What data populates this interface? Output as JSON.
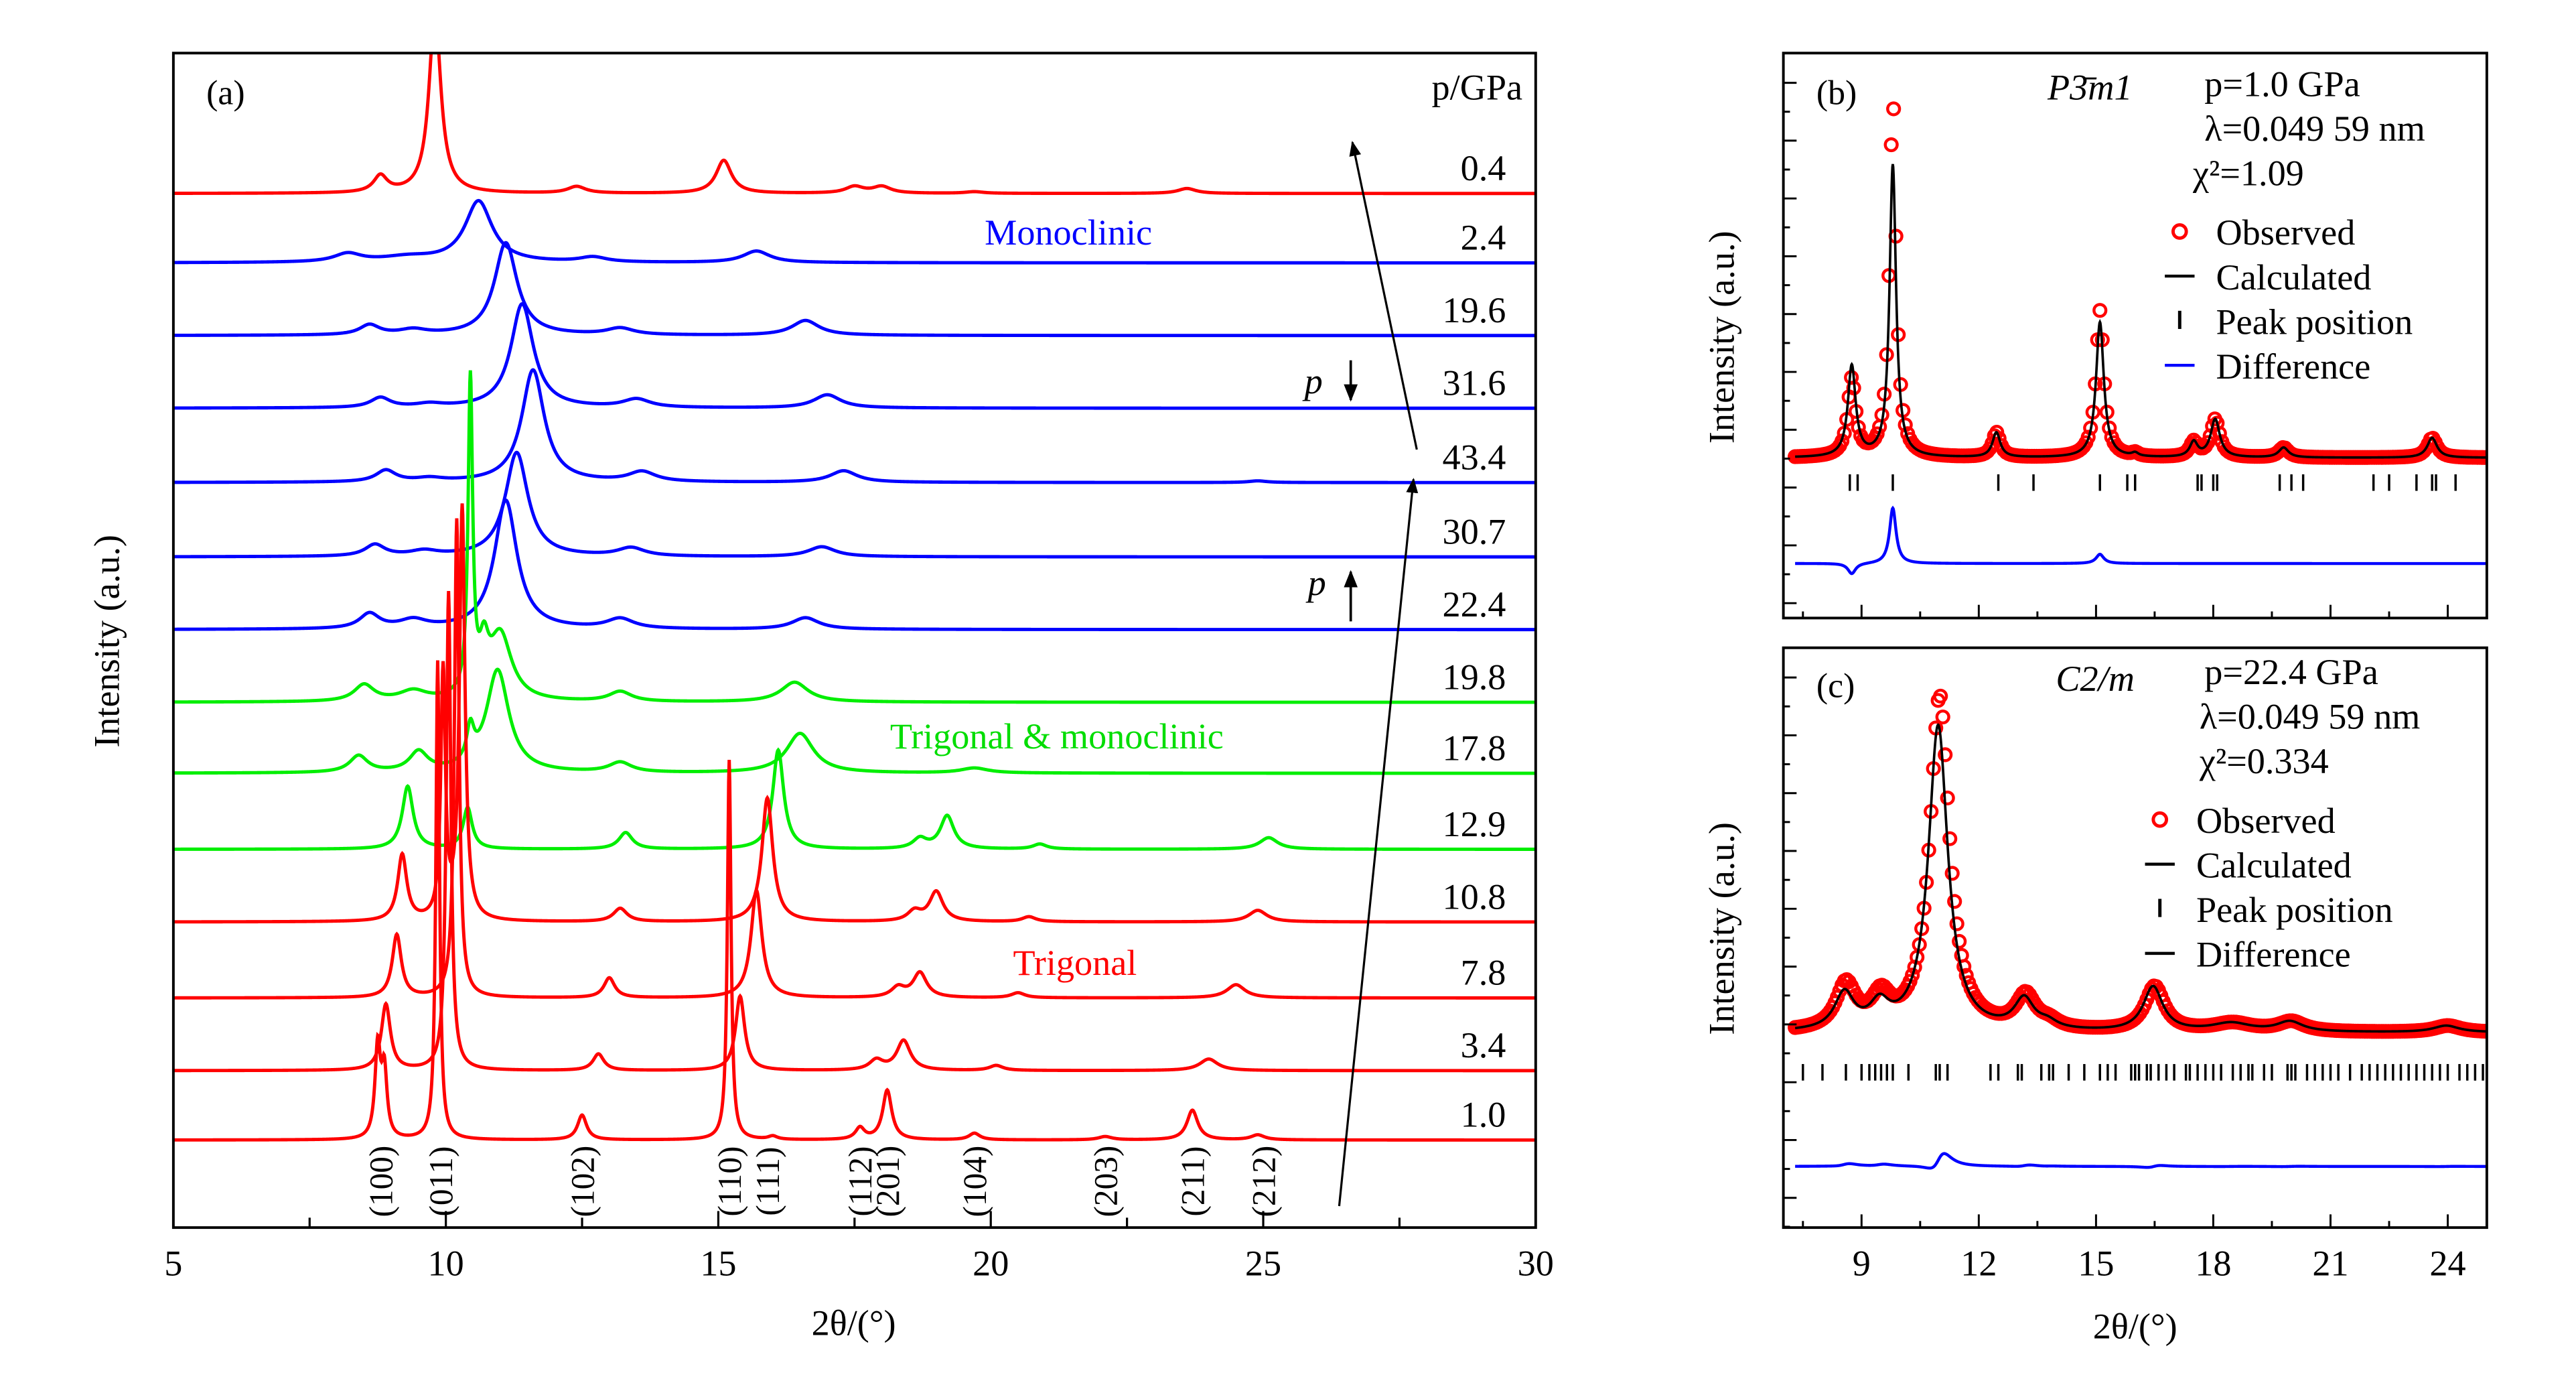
{
  "colors": {
    "trigonal": "#ff0000",
    "monoclinic": "#0000ff",
    "mixed": "#00ee00",
    "axis": "#000000",
    "observed": "#ff0000",
    "calculated": "#000000",
    "difference": "#0000ff"
  },
  "chart_data": [
    {
      "id": "a",
      "type": "line",
      "panel_label": "(a)",
      "xlabel": "2θ/(°)",
      "ylabel": "Intensity (a.u.)",
      "xlim": [
        5,
        30
      ],
      "xticks": [
        5,
        10,
        15,
        20,
        25,
        30
      ],
      "pressure_header": "p/GPa",
      "phase_labels": {
        "monoclinic": "Monoclinic",
        "mixed": "Trigonal & monoclinic",
        "trigonal": "Trigonal"
      },
      "pressure_arrows": [
        {
          "label": "p",
          "direction": "down"
        },
        {
          "label": "p",
          "direction": "up"
        }
      ],
      "series": [
        {
          "pressure": "0.4",
          "phase": "trigonal",
          "peaks": [
            [
              8.8,
              10,
              0.15
            ],
            [
              9.8,
              110,
              0.13
            ],
            [
              12.4,
              4,
              0.2
            ],
            [
              15.1,
              20,
              0.17
            ],
            [
              17.5,
              4,
              0.2
            ],
            [
              18.0,
              4,
              0.2
            ],
            [
              19.7,
              1,
              0.2
            ],
            [
              23.6,
              3,
              0.2
            ]
          ]
        },
        {
          "pressure": "2.4",
          "phase": "monoclinic",
          "peaks": [
            [
              8.2,
              5,
              0.3
            ],
            [
              9.3,
              3,
              0.6
            ],
            [
              10.6,
              37,
              0.3
            ],
            [
              12.7,
              3,
              0.3
            ],
            [
              15.7,
              7,
              0.3
            ]
          ]
        },
        {
          "pressure": "19.6",
          "phase": "monoclinic",
          "peaks": [
            [
              8.6,
              6,
              0.22
            ],
            [
              9.4,
              3,
              0.3
            ],
            [
              11.1,
              56,
              0.25
            ],
            [
              13.2,
              4,
              0.3
            ],
            [
              16.6,
              9,
              0.3
            ]
          ]
        },
        {
          "pressure": "31.6",
          "phase": "monoclinic",
          "peaks": [
            [
              8.8,
              6,
              0.22
            ],
            [
              9.7,
              2,
              0.3
            ],
            [
              11.4,
              63,
              0.25
            ],
            [
              13.5,
              5,
              0.3
            ],
            [
              17.0,
              8,
              0.3
            ]
          ]
        },
        {
          "pressure": "43.4",
          "phase": "monoclinic",
          "peaks": [
            [
              8.9,
              7,
              0.22
            ],
            [
              9.7,
              2,
              0.3
            ],
            [
              11.6,
              68,
              0.25
            ],
            [
              13.6,
              6,
              0.3
            ],
            [
              17.3,
              7,
              0.3
            ],
            [
              24.9,
              1,
              0.2
            ]
          ]
        },
        {
          "pressure": "30.7",
          "phase": "monoclinic",
          "peaks": [
            [
              8.7,
              7,
              0.22
            ],
            [
              9.6,
              3,
              0.3
            ],
            [
              11.3,
              63,
              0.25
            ],
            [
              13.4,
              5,
              0.3
            ],
            [
              16.9,
              6,
              0.3
            ]
          ]
        },
        {
          "pressure": "22.4",
          "phase": "monoclinic",
          "peaks": [
            [
              8.6,
              9,
              0.22
            ],
            [
              9.4,
              5,
              0.3
            ],
            [
              11.1,
              78,
              0.25
            ],
            [
              13.2,
              6,
              0.3
            ],
            [
              16.6,
              7,
              0.3
            ]
          ]
        },
        {
          "pressure": "19.8",
          "phase": "mixed",
          "peaks": [
            [
              8.5,
              10,
              0.22
            ],
            [
              9.4,
              6,
              0.3
            ],
            [
              10.45,
              190,
              0.05
            ],
            [
              10.7,
              25,
              0.1
            ],
            [
              11.0,
              40,
              0.25
            ],
            [
              13.2,
              6,
              0.25
            ],
            [
              16.4,
              12,
              0.3
            ]
          ]
        },
        {
          "pressure": "17.8",
          "phase": "mixed",
          "peaks": [
            [
              8.4,
              10,
              0.2
            ],
            [
              9.5,
              12,
              0.2
            ],
            [
              10.45,
              20,
              0.08
            ],
            [
              10.95,
              62,
              0.25
            ],
            [
              13.2,
              6,
              0.25
            ],
            [
              16.5,
              24,
              0.3
            ],
            [
              19.7,
              3,
              0.3
            ]
          ]
        },
        {
          "pressure": "12.9",
          "phase": "mixed",
          "peaks": [
            [
              9.3,
              38,
              0.12
            ],
            [
              10.4,
              25,
              0.1
            ],
            [
              13.3,
              10,
              0.15
            ],
            [
              16.1,
              60,
              0.12
            ],
            [
              18.7,
              6,
              0.15
            ],
            [
              19.2,
              20,
              0.15
            ],
            [
              20.9,
              3,
              0.15
            ],
            [
              25.1,
              7,
              0.2
            ]
          ]
        },
        {
          "pressure": "10.8",
          "phase": "trigonal",
          "peaks": [
            [
              9.2,
              40,
              0.1
            ],
            [
              9.95,
              150,
              0.05
            ],
            [
              10.3,
              250,
              0.06
            ],
            [
              13.2,
              8,
              0.15
            ],
            [
              15.9,
              75,
              0.12
            ],
            [
              18.6,
              6,
              0.15
            ],
            [
              19.0,
              18,
              0.15
            ],
            [
              20.7,
              3,
              0.15
            ],
            [
              24.9,
              7,
              0.2
            ]
          ]
        },
        {
          "pressure": "7.8",
          "phase": "trigonal",
          "peaks": [
            [
              9.1,
              38,
              0.1
            ],
            [
              10.2,
              290,
              0.05
            ],
            [
              13.0,
              12,
              0.12
            ],
            [
              15.7,
              65,
              0.12
            ],
            [
              18.3,
              6,
              0.15
            ],
            [
              18.7,
              15,
              0.15
            ],
            [
              20.5,
              3,
              0.15
            ],
            [
              24.5,
              8,
              0.2
            ]
          ]
        },
        {
          "pressure": "3.4",
          "phase": "trigonal",
          "peaks": [
            [
              8.9,
              40,
              0.1
            ],
            [
              10.05,
              290,
              0.05
            ],
            [
              12.8,
              10,
              0.12
            ],
            [
              15.4,
              45,
              0.1
            ],
            [
              17.9,
              6,
              0.15
            ],
            [
              18.4,
              18,
              0.15
            ],
            [
              20.1,
              3,
              0.15
            ],
            [
              24.0,
              7,
              0.2
            ]
          ]
        },
        {
          "pressure": "1.0",
          "phase": "trigonal",
          "peaks": [
            [
              8.75,
              55,
              0.06
            ],
            [
              8.87,
              40,
              0.06
            ],
            [
              9.85,
              290,
              0.04
            ],
            [
              12.5,
              15,
              0.1
            ],
            [
              15.2,
              230,
              0.04
            ],
            [
              16.0,
              2,
              0.1
            ],
            [
              17.6,
              7,
              0.1
            ],
            [
              18.1,
              30,
              0.1
            ],
            [
              19.7,
              4,
              0.12
            ],
            [
              22.1,
              2,
              0.15
            ],
            [
              23.7,
              18,
              0.12
            ],
            [
              24.9,
              3,
              0.15
            ]
          ]
        }
      ],
      "reflections": [
        {
          "hkl": "(100)",
          "x": 8.8
        },
        {
          "hkl": "(011)",
          "x": 9.9
        },
        {
          "hkl": "(102)",
          "x": 12.5
        },
        {
          "hkl": "(110)",
          "x": 15.2
        },
        {
          "hkl": "(111)",
          "x": 15.9
        },
        {
          "hkl": "(112)",
          "x": 17.6
        },
        {
          "hkl": "(201)",
          "x": 18.1
        },
        {
          "hkl": "(104)",
          "x": 19.7
        },
        {
          "hkl": "(203)",
          "x": 22.1
        },
        {
          "hkl": "(211)",
          "x": 23.7
        },
        {
          "hkl": "(212)",
          "x": 25.0
        }
      ]
    },
    {
      "id": "b",
      "type": "line",
      "panel_label": "(b)",
      "space_group": "P3̄m1",
      "info": [
        "p=1.0 GPa",
        "λ=0.049 59 nm",
        "χ²=1.09"
      ],
      "ylabel": "Intensity (a.u.)",
      "xlim": [
        7,
        25
      ],
      "legend": [
        "Observed",
        "Calculated",
        "Peak position",
        "Difference"
      ],
      "legend_position": "top-right",
      "peaks_obs_calc_width": [
        [
          8.75,
          47,
          55,
          0.12
        ],
        [
          9.8,
          219,
          177,
          0.1
        ],
        [
          12.45,
          15,
          15,
          0.12
        ],
        [
          15.1,
          89,
          82,
          0.12
        ],
        [
          16.0,
          2,
          2,
          0.1
        ],
        [
          17.5,
          9,
          9,
          0.12
        ],
        [
          18.05,
          23,
          23,
          0.14
        ],
        [
          19.8,
          6,
          6,
          0.15
        ],
        [
          23.6,
          12,
          12,
          0.15
        ]
      ],
      "peak_positions": [
        8.7,
        8.9,
        9.8,
        12.5,
        13.4,
        15.1,
        15.8,
        16.0,
        17.6,
        17.7,
        18.0,
        18.1,
        19.7,
        20.0,
        20.3,
        22.1,
        22.5,
        23.2,
        23.6,
        23.7,
        24.2,
        25.0
      ]
    },
    {
      "id": "c",
      "type": "line",
      "panel_label": "(c)",
      "space_group": "C2/m",
      "info": [
        "p=22.4 GPa",
        "λ=0.049 59 nm",
        "χ²=0.334"
      ],
      "xlabel": "2θ/(°)",
      "ylabel": "Intensity (a.u.)",
      "xlim": [
        7,
        25
      ],
      "xticks": [
        9,
        12,
        15,
        18,
        21,
        24
      ],
      "legend": [
        "Observed",
        "Calculated",
        "Peak position",
        "Difference"
      ],
      "legend_position": "top-right",
      "peaks_obs_calc_width": [
        [
          8.6,
          27,
          22,
          0.3
        ],
        [
          9.5,
          18,
          14,
          0.3
        ],
        [
          11.0,
          203,
          185,
          0.3
        ],
        [
          13.2,
          20,
          18,
          0.3
        ],
        [
          13.8,
          4,
          4,
          0.3
        ],
        [
          16.5,
          27,
          27,
          0.3
        ],
        [
          18.5,
          5,
          5,
          0.6
        ],
        [
          20.0,
          6,
          6,
          0.4
        ],
        [
          24.0,
          4,
          4,
          0.4
        ]
      ],
      "peak_positions": [
        7.5,
        8.0,
        8.6,
        9.0,
        9.2,
        9.35,
        9.5,
        9.65,
        9.8,
        10.2,
        10.9,
        11.0,
        11.2,
        12.3,
        12.5,
        13.0,
        13.1,
        13.6,
        13.8,
        13.9,
        14.3,
        14.7,
        15.1,
        15.3,
        15.5,
        15.9,
        16.0,
        16.1,
        16.3,
        16.4,
        16.6,
        16.8,
        17.0,
        17.3,
        17.4,
        17.6,
        17.8,
        18.0,
        18.2,
        18.5,
        18.7,
        18.9,
        19.0,
        19.3,
        19.5,
        19.9,
        20.0,
        20.1,
        20.4,
        20.6,
        20.8,
        21.0,
        21.2,
        21.5,
        21.8,
        22.0,
        22.2,
        22.4,
        22.6,
        22.8,
        23.0,
        23.2,
        23.4,
        23.6,
        23.8,
        24.0,
        24.3,
        24.5,
        24.7,
        24.9
      ]
    }
  ]
}
